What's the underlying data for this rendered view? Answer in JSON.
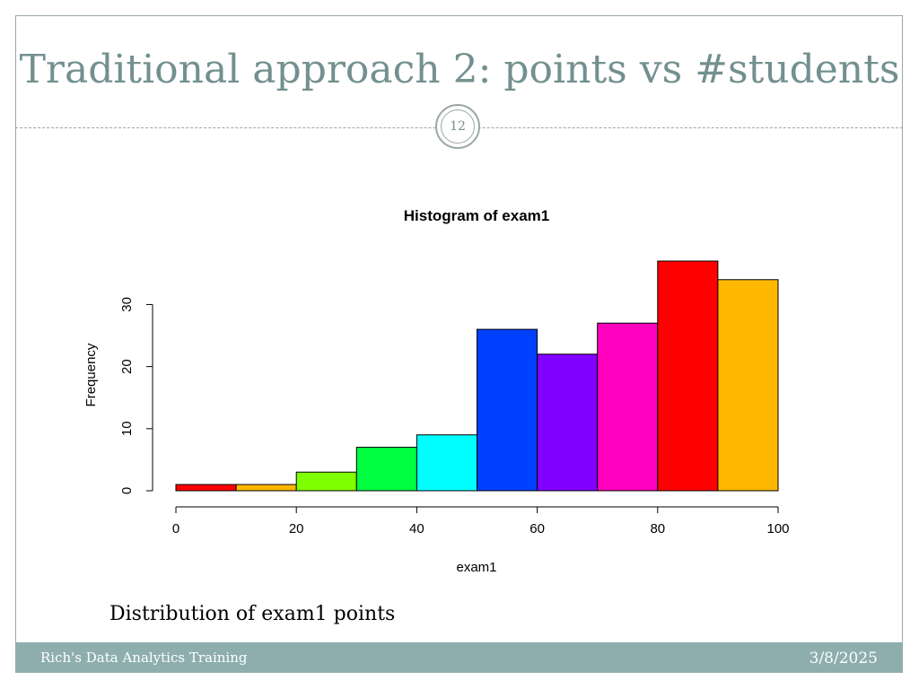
{
  "slide": {
    "title": "Traditional approach 2: points vs #students",
    "page_number": "12",
    "caption": "Distribution of exam1 points"
  },
  "footer": {
    "left_text": "Rich's Data Analytics Training",
    "date": "3/8/2025"
  },
  "colors": {
    "title": "#73908f",
    "footer": "#8eaeae",
    "frame": "#9aa7a7"
  },
  "chart_data": {
    "type": "bar",
    "title": "Histogram of exam1",
    "xlabel": "exam1",
    "ylabel": "Frequency",
    "bins": [
      [
        0,
        10
      ],
      [
        10,
        20
      ],
      [
        20,
        30
      ],
      [
        30,
        40
      ],
      [
        40,
        50
      ],
      [
        50,
        60
      ],
      [
        60,
        70
      ],
      [
        70,
        80
      ],
      [
        80,
        90
      ],
      [
        90,
        100
      ]
    ],
    "values": [
      1,
      1,
      3,
      7,
      9,
      26,
      22,
      27,
      37,
      34
    ],
    "colors": [
      "#ff0000",
      "#ffb800",
      "#80ff00",
      "#00ff40",
      "#00ffff",
      "#0040ff",
      "#8000ff",
      "#ff00bf",
      "#ff0000",
      "#ffb800"
    ],
    "xlim": [
      0,
      100
    ],
    "ylim": [
      0,
      37
    ],
    "x_ticks": [
      "0",
      "20",
      "40",
      "60",
      "80",
      "100"
    ],
    "y_ticks": [
      "0",
      "10",
      "20",
      "30"
    ],
    "grid": false
  }
}
